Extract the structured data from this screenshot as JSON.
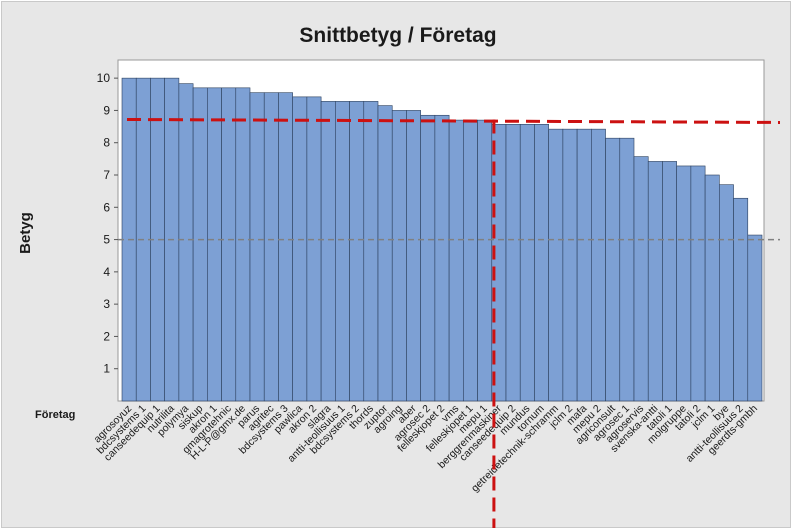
{
  "chart_data": {
    "type": "bar",
    "title": "Snittbetyg /  Företag",
    "ylabel": "Betyg",
    "xlabel": "Företag",
    "ylim": [
      0,
      10.5
    ],
    "yticks": [
      1,
      2,
      3,
      4,
      5,
      6,
      7,
      8,
      9,
      10
    ],
    "grid": false,
    "categories": [
      "agrosoyuz",
      "bdcsystems 1",
      "canseedequip 1",
      "nutrilita",
      "polymya",
      "siskup",
      "akron 1",
      "gmagrotehnic",
      "H-L-P@gmx.de",
      "parus",
      "agritec",
      "bdcsystems 3",
      "pawlica",
      "akron 2",
      "slagra",
      "antti-teollisuus 1",
      "bdcsystems 2",
      "thords",
      "zuptor",
      "agroing",
      "aber",
      "agrosec 2",
      "felleskjopet 2",
      "vms",
      "felleskjopet 1",
      "mepu 1",
      "berggrenmaskiner",
      "canseedequip 2",
      "mundus",
      "tornum",
      "getreidetechnik-schramm",
      "jclm 2",
      "mafa",
      "mepu 2",
      "agriconsult",
      "agrosec 1",
      "agroservis",
      "svenska-antti",
      "tatoli 1",
      "molgruppe",
      "tatoli 2",
      "jclm 1",
      "bye",
      "antti-teollisuus 2",
      "geerdts-gmbh"
    ],
    "values": [
      10.0,
      10.0,
      10.0,
      10.0,
      9.83,
      9.7,
      9.7,
      9.7,
      9.7,
      9.55,
      9.55,
      9.55,
      9.42,
      9.42,
      9.28,
      9.28,
      9.28,
      9.28,
      9.15,
      9.0,
      9.0,
      8.85,
      8.85,
      8.7,
      8.7,
      8.7,
      8.57,
      8.57,
      8.57,
      8.57,
      8.42,
      8.42,
      8.42,
      8.42,
      8.14,
      8.14,
      7.57,
      7.42,
      7.42,
      7.28,
      7.28,
      7.0,
      6.7,
      6.28,
      5.14
    ],
    "bar_color": "#7da0d4",
    "reference_lines": [
      {
        "y": 8.72,
        "style": "dashed",
        "color": "#cc1111"
      },
      {
        "y": 5.0,
        "style": "dashed",
        "color": "#808080"
      }
    ],
    "vertical_reference": {
      "category_index": 26,
      "style": "dashed",
      "color": "#cc1111"
    }
  }
}
